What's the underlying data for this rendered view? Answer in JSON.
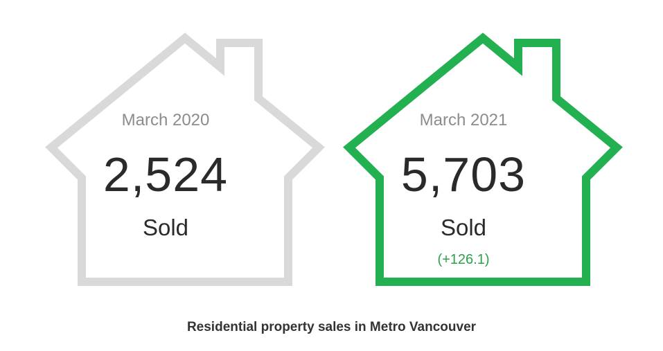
{
  "cards": [
    {
      "period": "March 2020",
      "count": "2,524",
      "label": "Sold",
      "change": "",
      "outline_color": "#d9d9d9"
    },
    {
      "period": "March 2021",
      "count": "5,703",
      "label": "Sold",
      "change": "(+126.1)",
      "outline_color": "#22b050"
    }
  ],
  "caption": "Residential property sales in Metro Vancouver"
}
